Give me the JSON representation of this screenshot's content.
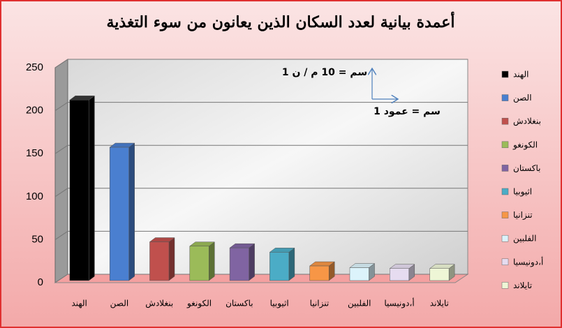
{
  "chart_data": {
    "type": "bar3d",
    "title": "أعمدة بيانية لعدد السكان الذين يعانون من سوء التغذية",
    "categories": [
      "الهند",
      "الصن",
      "بنغلادش",
      "الكونغو",
      "باكستان",
      "اثيوبيا",
      "تنزانيا",
      "الفلبين",
      "أ،دونيسيا",
      "تايلاند"
    ],
    "values": [
      210,
      155,
      45,
      40,
      38,
      33,
      17,
      15,
      14,
      14
    ],
    "colors": [
      "#000000",
      "#4a7fd0",
      "#c0504d",
      "#9bbb59",
      "#8064a2",
      "#4bacc6",
      "#f79646",
      "#dcf3fb",
      "#e6dcf0",
      "#eef6d6"
    ],
    "ylim": [
      0,
      250
    ],
    "yticks": [
      0,
      50,
      100,
      150,
      200,
      250
    ],
    "grid": true,
    "legend": "right",
    "annotations": [
      "1 سم = 10 م / ن",
      "1 سم = عمود"
    ]
  }
}
